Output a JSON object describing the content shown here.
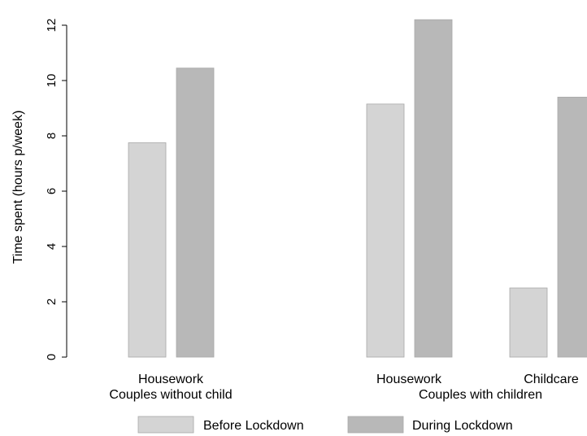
{
  "chart_data": {
    "type": "bar",
    "title": "",
    "xlabel": "",
    "ylabel": "Time spent (hours p/week)",
    "ylim": [
      0,
      12.5
    ],
    "yticks": [
      0,
      2,
      4,
      6,
      8,
      10,
      12
    ],
    "grid": false,
    "legend_position": "bottom",
    "groups": [
      {
        "label": "Couples without child",
        "bars": [
          {
            "category": "Housework",
            "series": "Before Lockdown",
            "value": 7.75
          },
          {
            "category": "Housework",
            "series": "During Lockdown",
            "value": 10.45
          }
        ]
      },
      {
        "label": "Couples with children",
        "bars": [
          {
            "category": "Housework",
            "series": "Before Lockdown",
            "value": 9.15
          },
          {
            "category": "Housework",
            "series": "During Lockdown",
            "value": 12.2
          },
          {
            "category": "Childcare",
            "series": "Before Lockdown",
            "value": 2.5
          },
          {
            "category": "Childcare",
            "series": "During Lockdown",
            "value": 9.4
          }
        ]
      }
    ],
    "category_labels": [
      {
        "text": "Housework",
        "group": 0
      },
      {
        "text": "Housework",
        "group": 1
      },
      {
        "text": "Childcare",
        "group": 1
      }
    ],
    "series": [
      {
        "name": "Before Lockdown",
        "color": "#d4d4d4"
      },
      {
        "name": "During Lockdown",
        "color": "#b8b8b8"
      }
    ]
  }
}
